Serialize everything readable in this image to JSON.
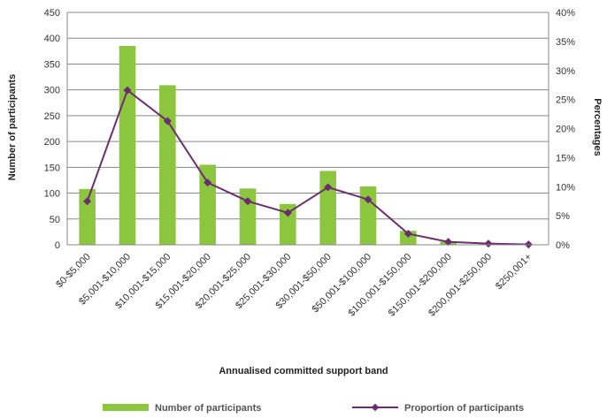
{
  "chart_data": {
    "type": "bar",
    "categories": [
      "$0-$5,000",
      "$5,001-$10,000",
      "$10,001-$15,000",
      "$15,001-$20,000",
      "$20,001-$25,000",
      "$25,001-$30,000",
      "$30,001-$50,000",
      "$50,001-$100,000",
      "$100,001-$150,000",
      "$150,001-$200,000",
      "$200,001-$250,000",
      "$250,001+"
    ],
    "xlabel": "Annualised committed support band",
    "ylabel": "Number of participants",
    "y2label": "Percentages",
    "ylim": [
      0,
      450
    ],
    "y2lim": [
      0,
      0.4
    ],
    "yticks": [
      "0",
      "50",
      "100",
      "150",
      "200",
      "250",
      "300",
      "350",
      "400",
      "450"
    ],
    "y2ticks": [
      "0%",
      "5%",
      "10%",
      "15%",
      "20%",
      "25%",
      "30%",
      "35%",
      "40%"
    ],
    "grid": true,
    "legend_position": "bottom",
    "series": [
      {
        "name": "Number of participants",
        "type": "bar",
        "axis": "left",
        "color": "#8cc63f",
        "values": [
          108,
          385,
          309,
          155,
          109,
          79,
          143,
          113,
          27,
          6,
          3,
          1
        ]
      },
      {
        "name": "Proportion of participants",
        "type": "line",
        "axis": "right",
        "color": "#6b2d6e",
        "values": [
          0.075,
          0.266,
          0.213,
          0.107,
          0.075,
          0.055,
          0.099,
          0.078,
          0.019,
          0.005,
          0.002,
          0.0005
        ]
      }
    ]
  }
}
